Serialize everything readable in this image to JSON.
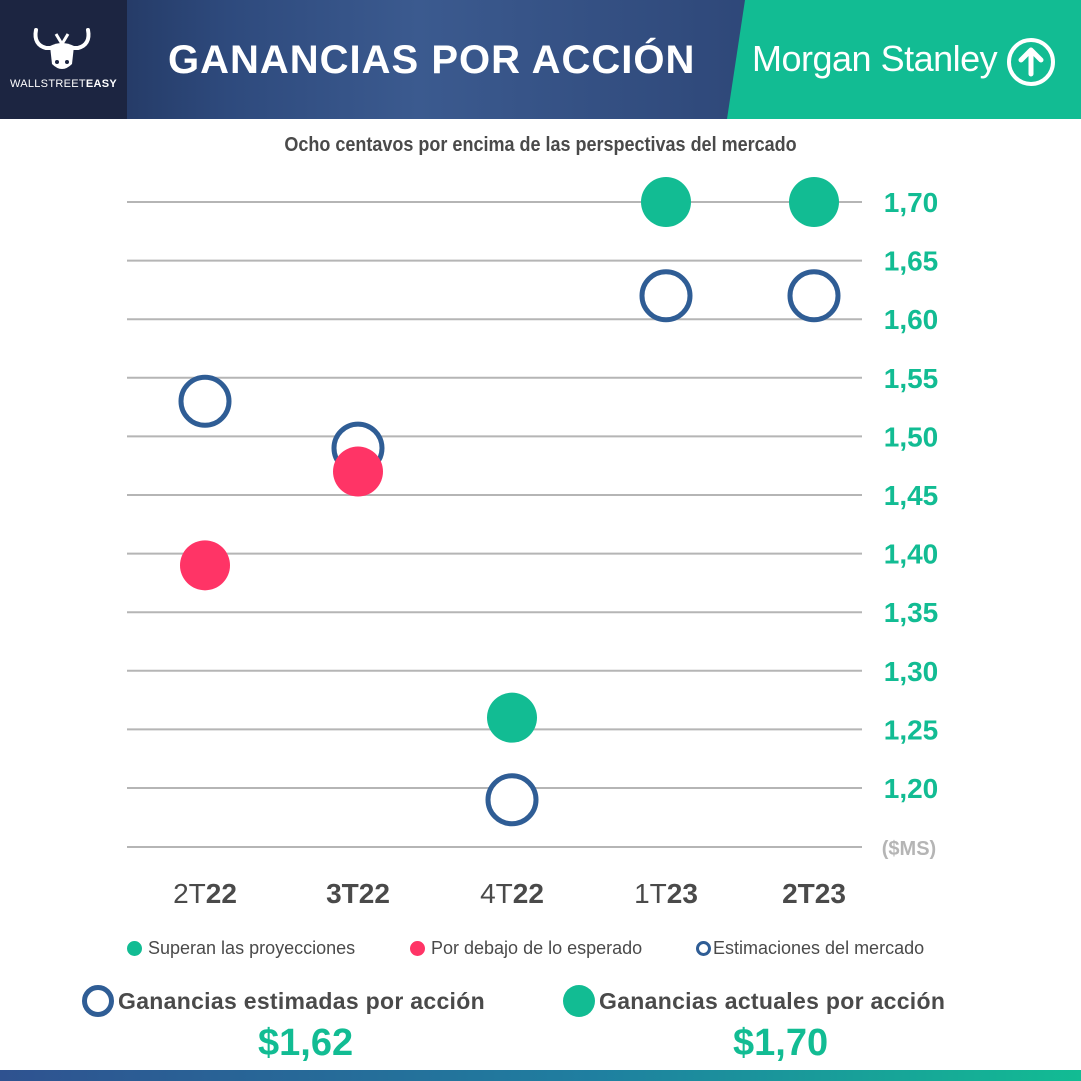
{
  "header": {
    "logo_text_plain": "WALLSTREET",
    "logo_text_bold": "EASY",
    "title": "GANANCIAS POR ACCIÓN",
    "brand": "Morgan Stanley",
    "brand_color": "#12bc93"
  },
  "subtitle": "Ocho centavos por encima de las perspectivas del mercado",
  "chart_data": {
    "type": "scatter",
    "title": "Ocho centavos por encima de las perspectivas del mercado",
    "ylabel": "($MS)",
    "ylim": [
      1.15,
      1.7
    ],
    "yticks": [
      1.7,
      1.65,
      1.6,
      1.55,
      1.5,
      1.45,
      1.4,
      1.35,
      1.3,
      1.25,
      1.2
    ],
    "ytick_labels": [
      "1,70",
      "1,65",
      "1,60",
      "1,55",
      "1,50",
      "1,45",
      "1,40",
      "1,35",
      "1,30",
      "1,25",
      "1,20"
    ],
    "categories": [
      {
        "prefix": "2T",
        "suffix": "22",
        "bold_prefix": false
      },
      {
        "prefix": "3T",
        "suffix": "22",
        "bold_prefix": true
      },
      {
        "prefix": "4T",
        "suffix": "22",
        "bold_prefix": false
      },
      {
        "prefix": "1T",
        "suffix": "23",
        "bold_prefix": false
      },
      {
        "prefix": "2T",
        "suffix": "23",
        "bold_prefix": true
      }
    ],
    "series": [
      {
        "name": "Estimaciones del mercado",
        "style": "ring",
        "values": [
          1.53,
          1.49,
          1.19,
          1.62,
          1.62
        ]
      },
      {
        "name": "Ganancias actuales",
        "style": "filled",
        "values": [
          1.39,
          1.47,
          1.26,
          1.7,
          1.7
        ],
        "status": [
          "below",
          "below",
          "above",
          "above",
          "above"
        ]
      }
    ],
    "colors": {
      "above": "#12bc93",
      "below": "#ff3466",
      "estimate": "#2f5d95",
      "grid": "#b5b5b5"
    }
  },
  "legend": {
    "above": "Superan las proyecciones",
    "below": "Por debajo de lo esperado",
    "estimate": "Estimaciones del mercado"
  },
  "summary": {
    "estimated_label": "Ganancias estimadas por acción",
    "estimated_value": "$1,62",
    "actual_label": "Ganancias actuales por acción",
    "actual_value": "$1,70"
  }
}
